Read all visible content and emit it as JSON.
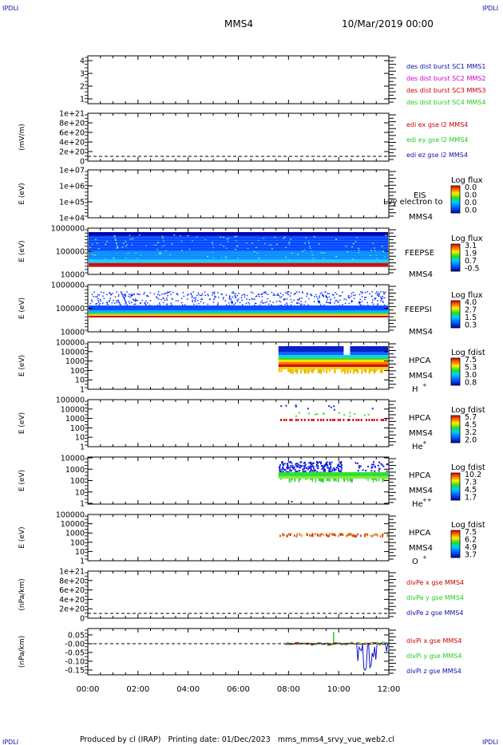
{
  "header": {
    "left_tag": "IPDLI",
    "right_tag": "IPDLI",
    "spacecraft": "MMS4",
    "date": "10/Mar/2019 00:00"
  },
  "footer": {
    "left_tag": "IPDLI",
    "right_tag": "IPDLI",
    "text": "Produced by cl (IRAP)   Printing date: 01/Dec/2023   mms_mms4_srvy_vue_web2.cl"
  },
  "colors": {
    "red": "#cc0000",
    "magenta": "#cc00cc",
    "green": "#22cc22",
    "blue": "#1010aa",
    "black": "#000000"
  },
  "chart_data": [
    {
      "type": "line",
      "id": "burst",
      "ylabel": "",
      "ylim": [
        0.5,
        4.5
      ],
      "yticks": [
        "1",
        "2",
        "3",
        "4"
      ],
      "legend": [
        {
          "text": "des dist burst SC1 MMS1",
          "color": "#1010aa"
        },
        {
          "text": "des dist burst SC2 MMS2",
          "color": "#cc00cc"
        },
        {
          "text": "des dist burst SC3 MMS3",
          "color": "#cc0000"
        },
        {
          "text": "des dist burst SC4 MMS4",
          "color": "#22cc22"
        }
      ],
      "series": []
    },
    {
      "type": "line",
      "id": "edi",
      "ylabel": "(mV/m)",
      "yticks": [
        "0",
        "2e+20",
        "4e+20",
        "6e+20",
        "8e+20",
        "1e+21"
      ],
      "ylim": [
        0,
        1e+21
      ],
      "legend": [
        {
          "text": "edi ex gse l2 MMS4",
          "color": "#cc0000"
        },
        {
          "text": "edi ey gse l2 MMS4",
          "color": "#22cc22"
        },
        {
          "text": "edi ez gse l2 MMS4",
          "color": "#1010aa"
        }
      ],
      "zero_line": true
    },
    {
      "type": "heatmap",
      "id": "eis",
      "ylabel": "E (eV)",
      "yticks": [
        "1e+04",
        "1e+05",
        "1e+06",
        "1e+07"
      ],
      "labels": [
        "EIS",
        "MMS4"
      ],
      "overlay_label": "Lvy electron to",
      "colorbar": {
        "title": "Log flux",
        "ticks": [
          "0.0",
          "0.0",
          "0.0",
          "0.0"
        ]
      },
      "data": []
    },
    {
      "type": "heatmap",
      "id": "feepse",
      "ylabel": "E (eV)",
      "yticks": [
        "10000",
        "100000",
        "1000000"
      ],
      "labels": [
        "FEEPSE",
        "MMS4"
      ],
      "colorbar": {
        "title": "Log flux",
        "ticks": [
          "3.1",
          "1.9",
          "0.7",
          "-0.5"
        ]
      },
      "data": {
        "time_range_h": [
          0,
          12
        ],
        "bands": [
          {
            "from": 0.1,
            "to": 0.17,
            "level": 1.0
          },
          {
            "from": 0.17,
            "to": 0.3,
            "level": 0.85
          },
          {
            "from": 0.3,
            "to": 0.9,
            "level": 0.15
          },
          {
            "from": 0.9,
            "to": 0.95,
            "level": 0.05
          }
        ]
      }
    },
    {
      "type": "heatmap",
      "id": "feepsi",
      "ylabel": "E (eV)",
      "yticks": [
        "10000",
        "100000",
        "1000000"
      ],
      "labels": [
        "FEEPSI",
        "MMS4"
      ],
      "colorbar": {
        "title": "Log flux",
        "ticks": [
          "4.0",
          "2.7",
          "1.5",
          "0.3"
        ]
      },
      "data": {
        "time_range_h": [
          0,
          12
        ],
        "bands": [
          {
            "from": 0.28,
            "to": 0.34,
            "level": 1.0
          },
          {
            "from": 0.34,
            "to": 0.4,
            "level": 0.7
          },
          {
            "from": 0.4,
            "to": 0.55,
            "level": 0.25
          },
          {
            "from": 0.55,
            "to": 0.95,
            "level": 0.08
          }
        ]
      }
    },
    {
      "type": "heatmap",
      "id": "hpca_h",
      "ylabel": "E (eV)",
      "yticks": [
        "1",
        "10",
        "100",
        "1000",
        "10000",
        "100000"
      ],
      "labels": [
        "HPCA",
        "MMS4",
        "H",
        "+"
      ],
      "colorbar": {
        "title": "Log fdist",
        "ticks": [
          "7.5",
          "5.3",
          "3.0",
          "0.8"
        ]
      },
      "data": {
        "time_range_h": [
          7.6,
          12
        ]
      }
    },
    {
      "type": "heatmap",
      "id": "hpca_he",
      "ylabel": "E (eV)",
      "yticks": [
        "1",
        "10",
        "100",
        "1000",
        "10000",
        "100000"
      ],
      "labels": [
        "HPCA",
        "MMS4",
        "He",
        "+"
      ],
      "colorbar": {
        "title": "Log fdist",
        "ticks": [
          "5.7",
          "4.5",
          "3.2",
          "2.0"
        ]
      },
      "data": {
        "time_range_h": [
          7.6,
          12
        ]
      }
    },
    {
      "type": "heatmap",
      "id": "hpca_hepp",
      "ylabel": "E (eV)",
      "yticks": [
        "1",
        "10",
        "100",
        "1000",
        "10000"
      ],
      "labels": [
        "HPCA",
        "MMS4",
        "He",
        "++"
      ],
      "colorbar": {
        "title": "Log fdist",
        "ticks": [
          "10.2",
          "7.3",
          "4.5",
          "1.7"
        ]
      },
      "data": {
        "time_range_h": [
          7.6,
          12
        ]
      }
    },
    {
      "type": "heatmap",
      "id": "hpca_o",
      "ylabel": "E (eV)",
      "yticks": [
        "1",
        "10",
        "100",
        "1000",
        "10000",
        "100000"
      ],
      "labels": [
        "HPCA",
        "MMS4",
        "O",
        "+"
      ],
      "colorbar": {
        "title": "Log fdist",
        "ticks": [
          "7.5",
          "6.2",
          "4.9",
          "3.7"
        ]
      },
      "data": {
        "time_range_h": [
          7.6,
          12
        ]
      }
    },
    {
      "type": "line",
      "id": "divpe",
      "ylabel": "(nPa/km)",
      "yticks": [
        "0",
        "2e+20",
        "4e+20",
        "6e+20",
        "8e+20",
        "1e+21"
      ],
      "ylim": [
        0,
        1e+21
      ],
      "legend": [
        {
          "text": "divPe x gse MMS4",
          "color": "#cc0000"
        },
        {
          "text": "divPe y gse MMS4",
          "color": "#22cc22"
        },
        {
          "text": "divPe z gse MMS4",
          "color": "#1010aa"
        }
      ],
      "zero_line": true
    },
    {
      "type": "line",
      "id": "divpi",
      "ylabel": "(nPa/km)",
      "yticks": [
        "-0.15",
        "-0.10",
        "-0.05",
        "-0.00",
        "0.05"
      ],
      "ylim": [
        -0.17,
        0.09
      ],
      "legend": [
        {
          "text": "divPi x gse MMS4",
          "color": "#cc0000"
        },
        {
          "text": "divPi y gse MMS4",
          "color": "#22cc22"
        },
        {
          "text": "divPi z gse MMS4",
          "color": "#1010aa"
        }
      ],
      "zero_line": true,
      "time_range_h": [
        7.9,
        12
      ]
    }
  ],
  "xaxis": {
    "ticks": [
      "00:00",
      "02:00",
      "04:00",
      "06:00",
      "08:00",
      "10:00",
      "12:00"
    ],
    "range_h": [
      0,
      12
    ]
  }
}
